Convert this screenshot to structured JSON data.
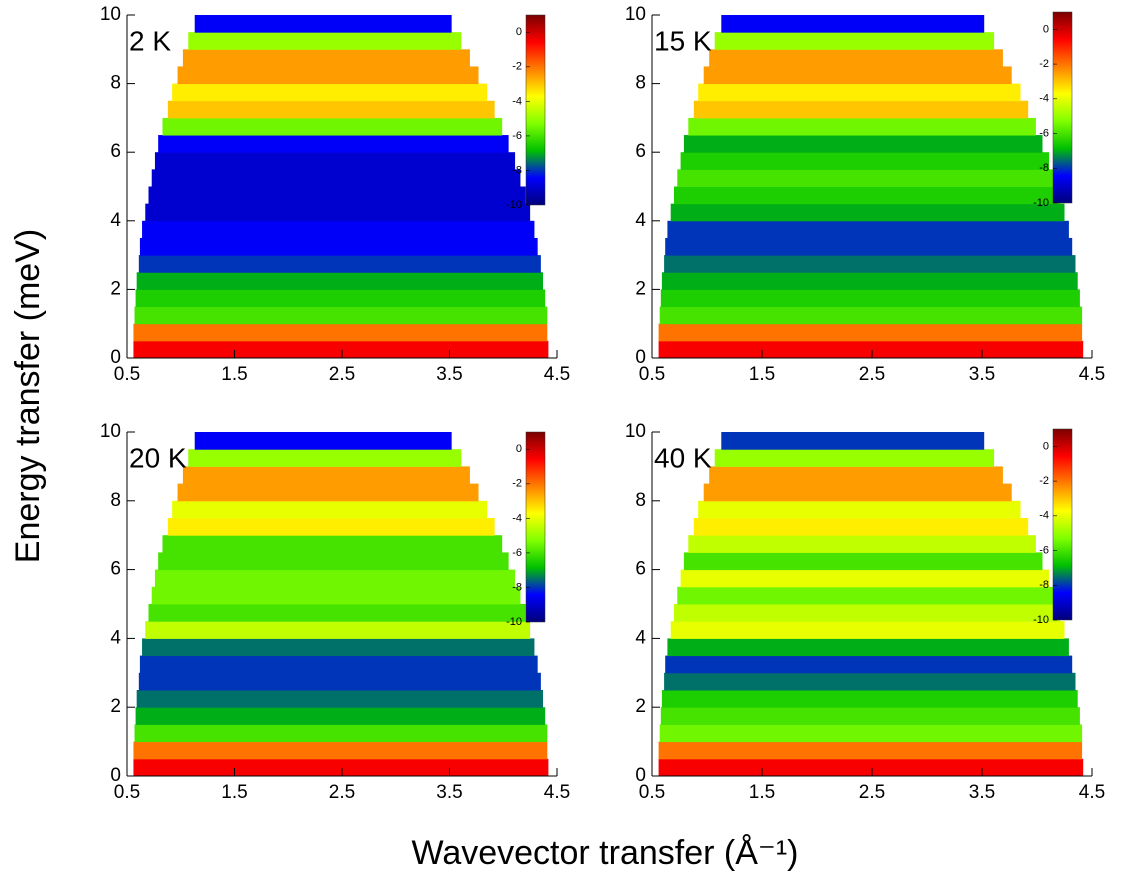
{
  "xlabel": "Wavevector transfer (Å⁻¹)",
  "ylabel": "Energy transfer (meV)",
  "chart_data": [
    {
      "type": "heatmap",
      "annotation": "2 K",
      "xlim": [
        0.5,
        4.5
      ],
      "xticks": [
        0.5,
        1.5,
        2.5,
        3.5,
        4.5
      ],
      "ylim": [
        0,
        10
      ],
      "yticks": [
        0,
        2,
        4,
        6,
        8,
        10
      ],
      "y_bins": [
        0,
        0.5,
        1,
        1.5,
        2,
        2.5,
        3,
        3.5,
        4,
        4.5,
        5,
        5.5,
        6,
        6.5,
        7,
        7.5,
        8,
        8.5,
        9,
        9.5,
        10
      ],
      "x_min": [
        0.56,
        0.56,
        0.57,
        0.58,
        0.59,
        0.61,
        0.62,
        0.64,
        0.67,
        0.7,
        0.73,
        0.76,
        0.79,
        0.83,
        0.88,
        0.92,
        0.97,
        1.02,
        1.07,
        1.13
      ],
      "x_max": [
        4.42,
        4.41,
        4.41,
        4.39,
        4.37,
        4.35,
        4.32,
        4.29,
        4.25,
        4.21,
        4.16,
        4.11,
        4.05,
        3.99,
        3.92,
        3.85,
        3.77,
        3.69,
        3.61,
        3.52
      ],
      "values": [
        -0.5,
        -2,
        -6,
        -6.5,
        -7,
        -8,
        -8.5,
        -8.5,
        -9,
        -9,
        -9,
        -9,
        -8.5,
        -5.5,
        -3,
        -3.5,
        -2.5,
        -2.5,
        -5,
        -8.5
      ],
      "clim": [
        -10,
        1
      ],
      "cticks": [
        0,
        -2,
        -4,
        -6,
        -8,
        -10
      ],
      "colormap": [
        "#00007a",
        "#0000ff",
        "#00c000",
        "#80ff00",
        "#ffff00",
        "#ff8000",
        "#ff0000",
        "#7a0000"
      ]
    },
    {
      "type": "heatmap",
      "annotation": "15 K",
      "xlim": [
        0.5,
        4.5
      ],
      "xticks": [
        0.5,
        1.5,
        2.5,
        3.5,
        4.5
      ],
      "ylim": [
        0,
        10
      ],
      "yticks": [
        0,
        2,
        4,
        6,
        8,
        10
      ],
      "y_bins": [
        0,
        0.5,
        1,
        1.5,
        2,
        2.5,
        3,
        3.5,
        4,
        4.5,
        5,
        5.5,
        6,
        6.5,
        7,
        7.5,
        8,
        8.5,
        9,
        9.5,
        10
      ],
      "x_min": [
        0.56,
        0.56,
        0.57,
        0.58,
        0.59,
        0.61,
        0.62,
        0.64,
        0.67,
        0.7,
        0.73,
        0.76,
        0.79,
        0.83,
        0.88,
        0.92,
        0.97,
        1.02,
        1.07,
        1.13
      ],
      "x_max": [
        4.42,
        4.41,
        4.41,
        4.39,
        4.37,
        4.35,
        4.32,
        4.29,
        4.25,
        4.21,
        4.16,
        4.11,
        4.05,
        3.99,
        3.92,
        3.85,
        3.77,
        3.69,
        3.61,
        3.52
      ],
      "values": [
        -0.5,
        -2,
        -6,
        -6.5,
        -7,
        -7.5,
        -8,
        -8,
        -7,
        -6.5,
        -6,
        -6.5,
        -7,
        -5.5,
        -3,
        -3.5,
        -2.5,
        -2.5,
        -5,
        -8.5
      ],
      "clim": [
        -10,
        1
      ],
      "cticks": [
        0,
        -2,
        -4,
        -6,
        -8,
        -10
      ],
      "colormap": [
        "#00007a",
        "#0000ff",
        "#00c000",
        "#80ff00",
        "#ffff00",
        "#ff8000",
        "#ff0000",
        "#7a0000"
      ]
    },
    {
      "type": "heatmap",
      "annotation": "20 K",
      "xlim": [
        0.5,
        4.5
      ],
      "xticks": [
        0.5,
        1.5,
        2.5,
        3.5,
        4.5
      ],
      "ylim": [
        0,
        10
      ],
      "yticks": [
        0,
        2,
        4,
        6,
        8,
        10
      ],
      "y_bins": [
        0,
        0.5,
        1,
        1.5,
        2,
        2.5,
        3,
        3.5,
        4,
        4.5,
        5,
        5.5,
        6,
        6.5,
        7,
        7.5,
        8,
        8.5,
        9,
        9.5,
        10
      ],
      "x_min": [
        0.56,
        0.56,
        0.57,
        0.58,
        0.59,
        0.61,
        0.62,
        0.64,
        0.67,
        0.7,
        0.73,
        0.76,
        0.79,
        0.83,
        0.88,
        0.92,
        0.97,
        1.02,
        1.07,
        1.13
      ],
      "x_max": [
        4.42,
        4.41,
        4.41,
        4.39,
        4.37,
        4.35,
        4.32,
        4.29,
        4.25,
        4.21,
        4.16,
        4.11,
        4.05,
        3.99,
        3.92,
        3.85,
        3.77,
        3.69,
        3.61,
        3.52
      ],
      "values": [
        -0.5,
        -2,
        -6,
        -7,
        -7.5,
        -8,
        -8,
        -7.5,
        -4.5,
        -6,
        -5.5,
        -5.5,
        -6,
        -6,
        -3.5,
        -4,
        -2.5,
        -2.5,
        -5,
        -8.5
      ],
      "clim": [
        -10,
        1
      ],
      "cticks": [
        0,
        -2,
        -4,
        -6,
        -8,
        -10
      ],
      "colormap": [
        "#00007a",
        "#0000ff",
        "#00c000",
        "#80ff00",
        "#ffff00",
        "#ff8000",
        "#ff0000",
        "#7a0000"
      ]
    },
    {
      "type": "heatmap",
      "annotation": "40 K",
      "xlim": [
        0.5,
        4.5
      ],
      "xticks": [
        0.5,
        1.5,
        2.5,
        3.5,
        4.5
      ],
      "ylim": [
        0,
        10
      ],
      "yticks": [
        0,
        2,
        4,
        6,
        8,
        10
      ],
      "y_bins": [
        0,
        0.5,
        1,
        1.5,
        2,
        2.5,
        3,
        3.5,
        4,
        4.5,
        5,
        5.5,
        6,
        6.5,
        7,
        7.5,
        8,
        8.5,
        9,
        9.5,
        10
      ],
      "x_min": [
        0.56,
        0.56,
        0.57,
        0.58,
        0.59,
        0.61,
        0.62,
        0.64,
        0.67,
        0.7,
        0.73,
        0.76,
        0.79,
        0.83,
        0.88,
        0.92,
        0.97,
        1.02,
        1.07,
        1.13
      ],
      "x_max": [
        4.42,
        4.41,
        4.41,
        4.39,
        4.37,
        4.35,
        4.32,
        4.29,
        4.25,
        4.21,
        4.16,
        4.11,
        4.05,
        3.99,
        3.92,
        3.85,
        3.77,
        3.69,
        3.61,
        3.52
      ],
      "values": [
        -0.5,
        -2,
        -5.5,
        -6,
        -6.5,
        -7.5,
        -8,
        -7,
        -4,
        -4.5,
        -5.5,
        -4,
        -6,
        -4.5,
        -3.5,
        -4,
        -2.5,
        -2.5,
        -5,
        -8
      ],
      "clim": [
        -10,
        1
      ],
      "cticks": [
        0,
        -2,
        -4,
        -6,
        -8,
        -10
      ],
      "colormap": [
        "#00007a",
        "#0000ff",
        "#00c000",
        "#80ff00",
        "#ffff00",
        "#ff8000",
        "#ff0000",
        "#7a0000"
      ]
    }
  ]
}
